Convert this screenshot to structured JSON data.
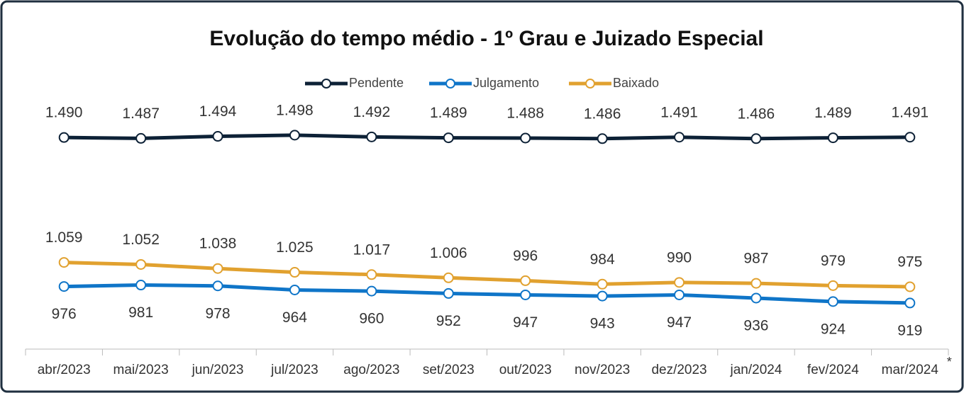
{
  "chart_data": {
    "type": "line",
    "title": "Evolução do tempo médio - 1º Grau e Juizado Especial",
    "categories": [
      "abr/2023",
      "mai/2023",
      "jun/2023",
      "jul/2023",
      "ago/2023",
      "set/2023",
      "out/2023",
      "nov/2023",
      "dez/2023",
      "jan/2024",
      "fev/2024",
      "mar/2024"
    ],
    "annotation": "*",
    "series": [
      {
        "name": "Pendente",
        "color": "#0d2136",
        "values": [
          1490,
          1487,
          1494,
          1498,
          1492,
          1489,
          1488,
          1486,
          1491,
          1486,
          1489,
          1491
        ],
        "value_labels": [
          "1.490",
          "1.487",
          "1.494",
          "1.498",
          "1.492",
          "1.489",
          "1.488",
          "1.486",
          "1.491",
          "1.486",
          "1.489",
          "1.491"
        ]
      },
      {
        "name": "Julgamento",
        "color": "#0f75c8",
        "values": [
          976,
          981,
          978,
          964,
          960,
          952,
          947,
          943,
          947,
          936,
          924,
          919
        ]
      },
      {
        "name": "Baixado",
        "color": "#e1a12f",
        "values": [
          1059,
          1052,
          1038,
          1025,
          1017,
          1006,
          996,
          984,
          990,
          987,
          979,
          975
        ],
        "value_labels": [
          "1.059",
          "1.052",
          "1.038",
          "1.025",
          "1.017",
          "1.006",
          "996",
          "984",
          "990",
          "987",
          "979",
          "975"
        ]
      }
    ],
    "ylim": [
      760,
      1720
    ]
  }
}
